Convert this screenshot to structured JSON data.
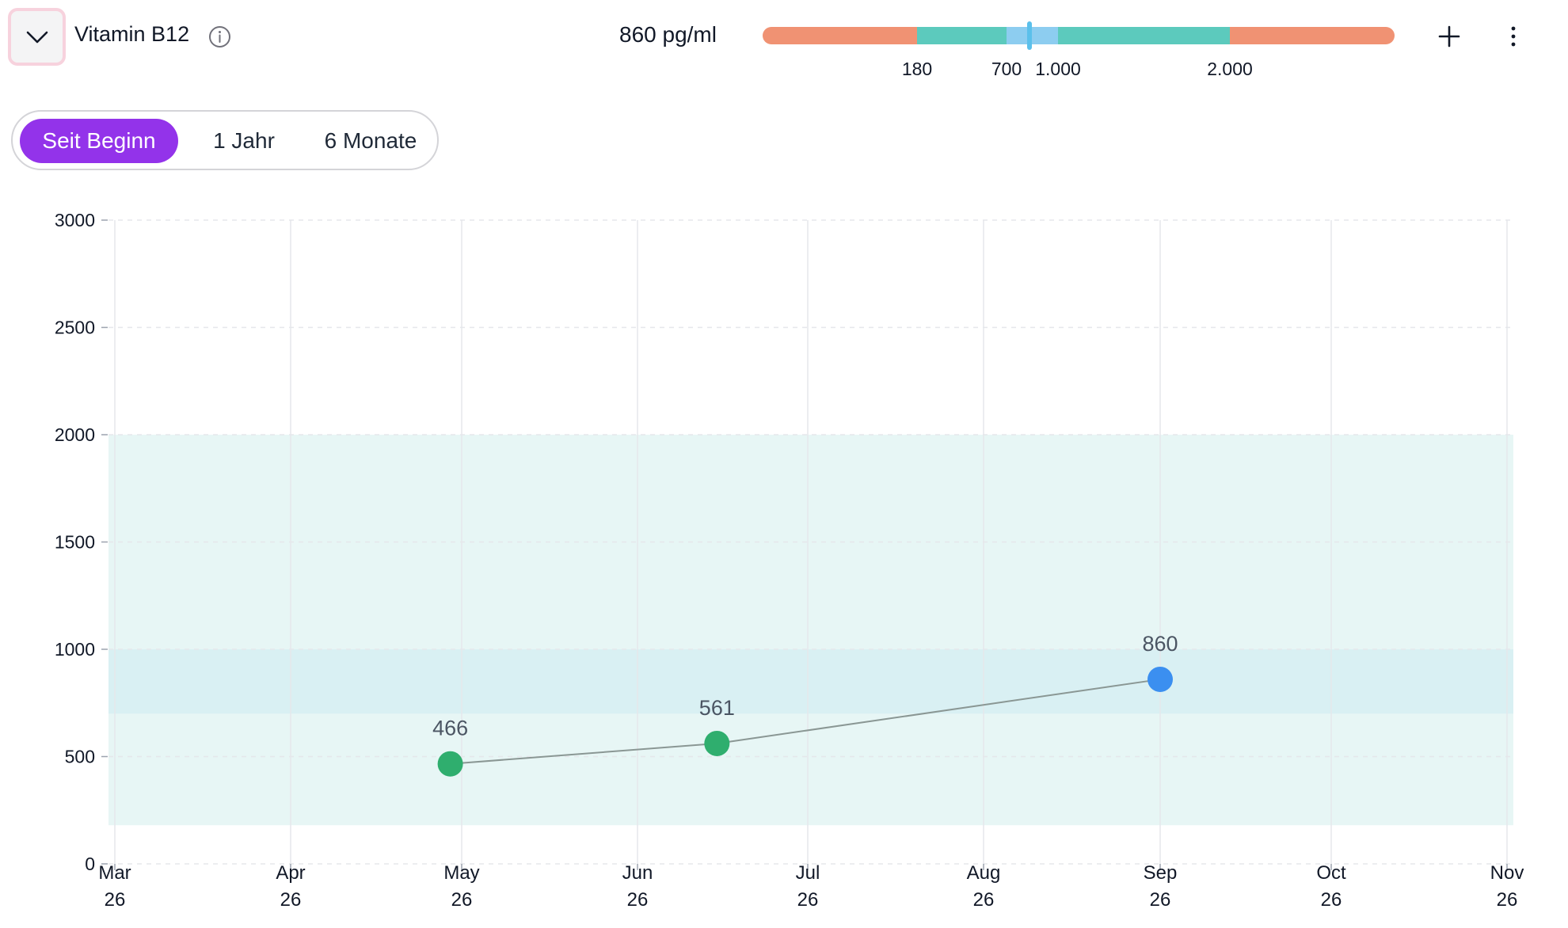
{
  "header": {
    "marker_name": "Vitamin B12",
    "current_value": "860 pg/ml",
    "icons": {
      "collapse": "chevron-down-icon",
      "info": "info-icon",
      "add": "plus-icon",
      "more": "vertical-ellipsis-icon"
    }
  },
  "range_indicator": {
    "ticks": [
      "180",
      "700",
      "1.000",
      "2.000"
    ],
    "current": 860,
    "colors": {
      "out_of_range": "#f09273",
      "normal": "#5ccabd",
      "optimal": "#8dcdf0",
      "marker": "#5bc0eb"
    }
  },
  "time_filter": {
    "options": [
      {
        "label": "Seit Beginn",
        "active": true
      },
      {
        "label": "1 Jahr",
        "active": false
      },
      {
        "label": "6 Monate",
        "active": false
      }
    ],
    "active_color": "#9333ea"
  },
  "chart_data": {
    "type": "line",
    "x_categories": [
      [
        "Mar",
        "26"
      ],
      [
        "Apr",
        "26"
      ],
      [
        "May",
        "26"
      ],
      [
        "Jun",
        "26"
      ],
      [
        "Jul",
        "26"
      ],
      [
        "Aug",
        "26"
      ],
      [
        "Sep",
        "26"
      ],
      [
        "Oct",
        "26"
      ],
      [
        "Nov",
        "26"
      ]
    ],
    "y_ticks": [
      0,
      500,
      1000,
      1500,
      2000,
      2500,
      3000
    ],
    "ylim": [
      0,
      3000
    ],
    "reference_band_normal": [
      180,
      2000
    ],
    "reference_band_optimal": [
      700,
      1000
    ],
    "points": [
      {
        "x": "2026-04-29",
        "y": 466,
        "label": "466",
        "color": "#2fae6e"
      },
      {
        "x": "2026-06-15",
        "y": 561,
        "label": "561",
        "color": "#2fae6e"
      },
      {
        "x": "2026-09-01",
        "y": 860,
        "label": "860",
        "color": "#3b8ff0"
      }
    ],
    "line_color": "#8a9794",
    "band_normal_color": "#e7f6f5",
    "band_optimal_color": "#d9f0f3",
    "grid": true
  }
}
